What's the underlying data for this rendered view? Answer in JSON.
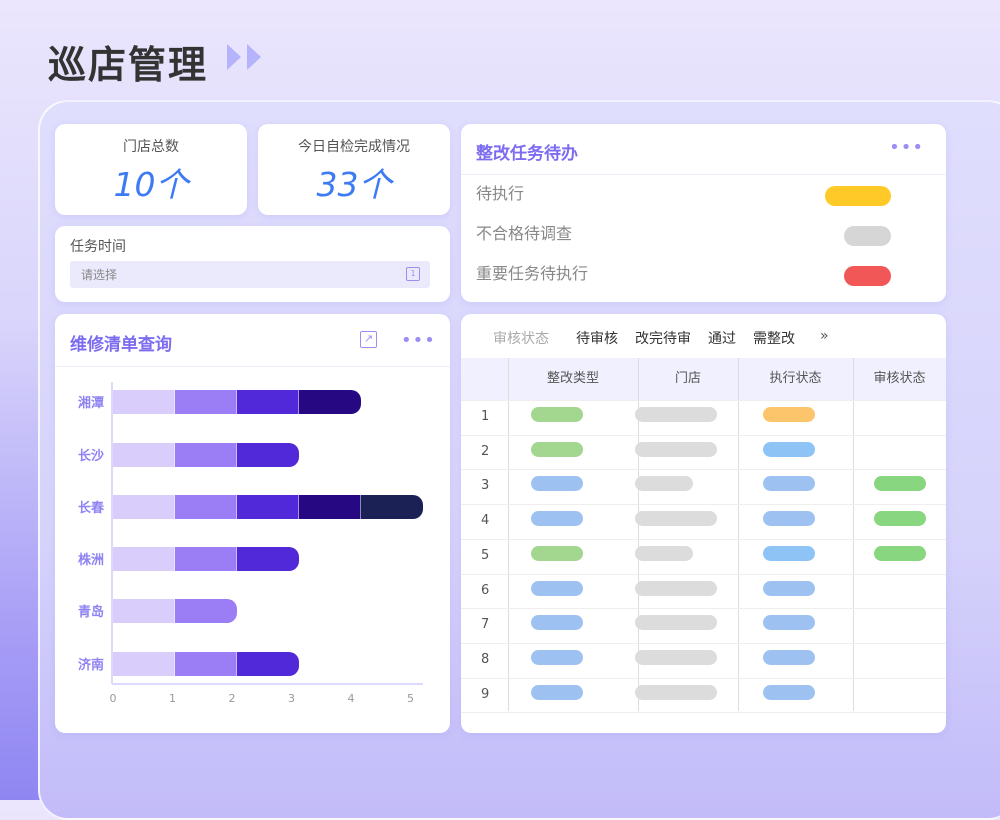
{
  "header": {
    "title": "巡店管理"
  },
  "stats": [
    {
      "label": "门店总数",
      "value": "10个"
    },
    {
      "label": "今日自检完成情况",
      "value": "33个"
    }
  ],
  "task_time": {
    "label": "任务时间",
    "placeholder": "请选择"
  },
  "todo": {
    "title": "整改任务待办",
    "items": [
      {
        "label": "待执行",
        "color": "#ffc928"
      },
      {
        "label": "不合格待调查",
        "color": "#d6d6d6"
      },
      {
        "label": "重要任务待执行",
        "color": "#f25757"
      }
    ]
  },
  "repair": {
    "title": "维修清单查询"
  },
  "chart_data": {
    "type": "bar",
    "orientation": "horizontal",
    "stacked": true,
    "categories": [
      "湘潭",
      "长沙",
      "长春",
      "株洲",
      "青岛",
      "济南"
    ],
    "series": [
      {
        "values": [
          1,
          1,
          1,
          1,
          1,
          1
        ],
        "color": "#d8cdfb"
      },
      {
        "values": [
          1,
          1,
          1,
          1,
          1,
          1
        ],
        "color": "#9b7df5"
      },
      {
        "values": [
          1,
          1,
          1,
          1,
          0,
          1
        ],
        "color": "#5229d8"
      },
      {
        "values": [
          1,
          0,
          1,
          0,
          0,
          0
        ],
        "color": "#250882"
      },
      {
        "values": [
          0,
          0,
          1,
          0,
          0,
          0
        ],
        "color": "#1b2155"
      }
    ],
    "xlim": [
      0,
      5
    ],
    "xticks": [
      "0",
      "1",
      "2",
      "3",
      "4",
      "5"
    ],
    "grid": false
  },
  "audit": {
    "filter_label": "审核状态",
    "filters": [
      "待审核",
      "改完待审",
      "通过",
      "需整改"
    ],
    "more": "»",
    "columns": [
      "整改类型",
      "门店",
      "执行状态",
      "审核状态"
    ],
    "colors": {
      "green": "#a3d68f",
      "gray": "#dcdcdc",
      "orange": "#fdc56b",
      "blue": "#9dc2f2",
      "lightblue": "#8ec3f5",
      "audit_green": "#88d67f"
    },
    "rows": [
      {
        "n": "1",
        "type": "green",
        "store": "long",
        "exec": "orange",
        "audit": ""
      },
      {
        "n": "2",
        "type": "green",
        "store": "long",
        "exec": "lightblue",
        "audit": ""
      },
      {
        "n": "3",
        "type": "blue",
        "store": "short",
        "exec": "blue",
        "audit": "audit_green"
      },
      {
        "n": "4",
        "type": "blue",
        "store": "long",
        "exec": "blue",
        "audit": "audit_green"
      },
      {
        "n": "5",
        "type": "green",
        "store": "short",
        "exec": "lightblue",
        "audit": "audit_green"
      },
      {
        "n": "6",
        "type": "blue",
        "store": "long",
        "exec": "blue",
        "audit": ""
      },
      {
        "n": "7",
        "type": "blue",
        "store": "long",
        "exec": "blue",
        "audit": ""
      },
      {
        "n": "8",
        "type": "blue",
        "store": "long",
        "exec": "blue",
        "audit": ""
      },
      {
        "n": "9",
        "type": "blue",
        "store": "long",
        "exec": "blue",
        "audit": ""
      }
    ]
  }
}
